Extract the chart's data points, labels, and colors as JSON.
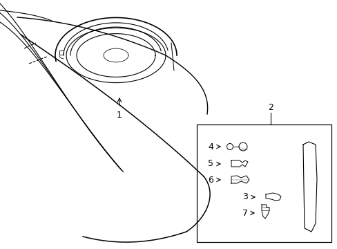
{
  "bg_color": "#ffffff",
  "line_color": "#000000",
  "fig_width": 4.89,
  "fig_height": 3.6,
  "dpi": 100,
  "label_1": "1",
  "label_2": "2",
  "label_3": "3",
  "label_4": "4",
  "label_5": "5",
  "label_6": "6",
  "label_7": "7"
}
